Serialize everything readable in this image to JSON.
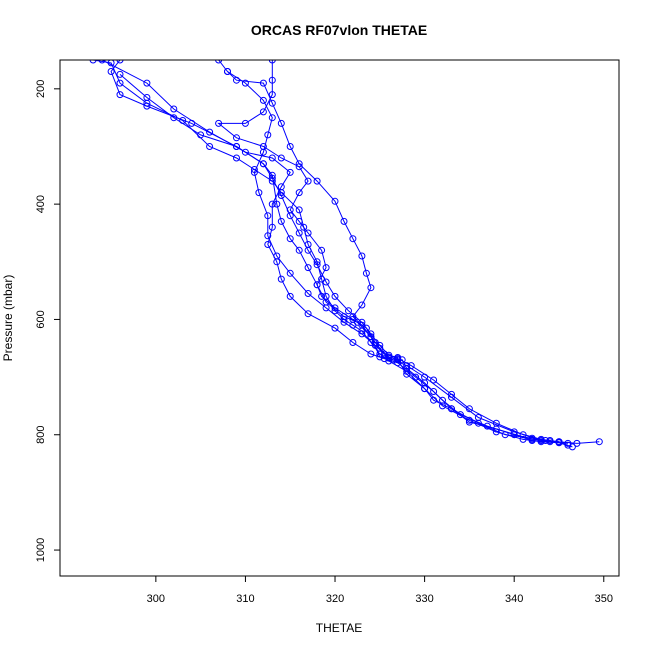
{
  "chart_data": {
    "type": "line",
    "title": "ORCAS RF07vlon THETAE",
    "xlabel": "THETAE",
    "ylabel": "Pressure (mbar)",
    "xlim": [
      289.3,
      351.7
    ],
    "ylim": [
      1045,
      150
    ],
    "y_inverted": true,
    "x_ticks": [
      300,
      310,
      320,
      330,
      340,
      350
    ],
    "y_ticks": [
      200,
      400,
      600,
      800,
      1000
    ],
    "grid": false,
    "legend": "none",
    "marker": "open-circle",
    "color": "#0000ff",
    "series": [
      {
        "points": [
          [
            293,
            150
          ],
          [
            295,
            155
          ],
          [
            296,
            190
          ],
          [
            299,
            225
          ],
          [
            303,
            255
          ],
          [
            306,
            300
          ],
          [
            309,
            320
          ],
          [
            311,
            340
          ],
          [
            313,
            360
          ],
          [
            314,
            380
          ],
          [
            316,
            410
          ],
          [
            316.5,
            440
          ],
          [
            317,
            470
          ],
          [
            318,
            500
          ],
          [
            318.5,
            530
          ],
          [
            319,
            560
          ],
          [
            320,
            585
          ],
          [
            321,
            600
          ],
          [
            322,
            610
          ],
          [
            323,
            620
          ],
          [
            324,
            640
          ],
          [
            325,
            660
          ],
          [
            326,
            672
          ],
          [
            328,
            690
          ],
          [
            330,
            720
          ],
          [
            332,
            750
          ],
          [
            335,
            775
          ],
          [
            338,
            795
          ],
          [
            341,
            808
          ],
          [
            343,
            812
          ],
          [
            345,
            814
          ],
          [
            346.5,
            821
          ]
        ]
      },
      {
        "points": [
          [
            296,
            150
          ],
          [
            295,
            170
          ],
          [
            296,
            210
          ],
          [
            299,
            230
          ],
          [
            304,
            260
          ],
          [
            309,
            300
          ],
          [
            312,
            330
          ],
          [
            313,
            350
          ],
          [
            313.5,
            400
          ],
          [
            314,
            430
          ],
          [
            315,
            460
          ],
          [
            316,
            480
          ],
          [
            317,
            510
          ],
          [
            318,
            540
          ],
          [
            319,
            570
          ],
          [
            321,
            595
          ],
          [
            322.5,
            605
          ],
          [
            324,
            630
          ],
          [
            325,
            665
          ],
          [
            326.5,
            670
          ],
          [
            327.5,
            670
          ],
          [
            328,
            685
          ],
          [
            330,
            710
          ],
          [
            332,
            740
          ],
          [
            334,
            765
          ],
          [
            337,
            785
          ],
          [
            340,
            800
          ],
          [
            342,
            810
          ],
          [
            344,
            812
          ],
          [
            346,
            815
          ]
        ]
      },
      {
        "points": [
          [
            294,
            150
          ],
          [
            299,
            190
          ],
          [
            302,
            235
          ],
          [
            306,
            275
          ],
          [
            310,
            310
          ],
          [
            313,
            320
          ],
          [
            315,
            345
          ],
          [
            314,
            370
          ],
          [
            313,
            400
          ],
          [
            313,
            440
          ],
          [
            312.5,
            470
          ],
          [
            313.5,
            500
          ],
          [
            314,
            530
          ],
          [
            315,
            560
          ],
          [
            317,
            590
          ],
          [
            320,
            615
          ],
          [
            322,
            640
          ],
          [
            324,
            660
          ],
          [
            325.5,
            668
          ],
          [
            327,
            675
          ],
          [
            329,
            700
          ],
          [
            331,
            725
          ],
          [
            333,
            755
          ],
          [
            336,
            780
          ],
          [
            339,
            800
          ],
          [
            342,
            806
          ],
          [
            343.5,
            810
          ],
          [
            345,
            812
          ]
        ]
      },
      {
        "points": [
          [
            307,
            150
          ],
          [
            308,
            170
          ],
          [
            310,
            190
          ],
          [
            312,
            220
          ],
          [
            313,
            250
          ],
          [
            312.5,
            280
          ],
          [
            312,
            310
          ],
          [
            311,
            345
          ],
          [
            311.5,
            380
          ],
          [
            312.5,
            420
          ],
          [
            312.5,
            455
          ],
          [
            313.5,
            490
          ],
          [
            315,
            520
          ],
          [
            317,
            555
          ],
          [
            319,
            580
          ],
          [
            321,
            605
          ],
          [
            323,
            625
          ],
          [
            324.5,
            645
          ],
          [
            326,
            667
          ],
          [
            328,
            680
          ],
          [
            330,
            700
          ],
          [
            333,
            735
          ],
          [
            336,
            770
          ],
          [
            340,
            795
          ],
          [
            343,
            808
          ],
          [
            345,
            812
          ],
          [
            347,
            815
          ],
          [
            349.5,
            812
          ]
        ]
      },
      {
        "points": [
          [
            313,
            150
          ],
          [
            313,
            185
          ],
          [
            313,
            210
          ],
          [
            312,
            240
          ],
          [
            310,
            260
          ],
          [
            307,
            260
          ],
          [
            309,
            285
          ],
          [
            312,
            300
          ],
          [
            314,
            320
          ],
          [
            316,
            335
          ],
          [
            317,
            360
          ],
          [
            316,
            380
          ],
          [
            315,
            410
          ],
          [
            316,
            430
          ],
          [
            317,
            450
          ],
          [
            318.5,
            480
          ],
          [
            319,
            510
          ],
          [
            318,
            540
          ],
          [
            318.5,
            560
          ],
          [
            320,
            580
          ],
          [
            322,
            600
          ],
          [
            323.5,
            615
          ],
          [
            324.5,
            640
          ],
          [
            325.5,
            660
          ],
          [
            327,
            666
          ],
          [
            327,
            670
          ]
        ]
      },
      {
        "points": [
          [
            308,
            170
          ],
          [
            309,
            185
          ],
          [
            312,
            190
          ],
          [
            313,
            225
          ],
          [
            314,
            260
          ],
          [
            315,
            300
          ],
          [
            316,
            330
          ],
          [
            318,
            360
          ],
          [
            320,
            395
          ],
          [
            321,
            430
          ],
          [
            322,
            460
          ],
          [
            323,
            490
          ],
          [
            323.5,
            520
          ],
          [
            324,
            545
          ],
          [
            323,
            575
          ],
          [
            322,
            595
          ],
          [
            323,
            610
          ],
          [
            324,
            630
          ],
          [
            325,
            650
          ],
          [
            326,
            665
          ],
          [
            327,
            670
          ],
          [
            328,
            695
          ],
          [
            330,
            720
          ],
          [
            331,
            740
          ],
          [
            333,
            755
          ],
          [
            335,
            778
          ],
          [
            338,
            790
          ],
          [
            342,
            808
          ],
          [
            344,
            810
          ],
          [
            346,
            818
          ]
        ]
      },
      {
        "points": [
          [
            296,
            175
          ],
          [
            299,
            215
          ],
          [
            302,
            250
          ],
          [
            305,
            280
          ],
          [
            309,
            300
          ],
          [
            312,
            330
          ],
          [
            313,
            355
          ],
          [
            314,
            385
          ],
          [
            315,
            420
          ],
          [
            316,
            450
          ],
          [
            317,
            480
          ],
          [
            318,
            505
          ],
          [
            319,
            535
          ],
          [
            320,
            560
          ],
          [
            321.5,
            585
          ],
          [
            323,
            605
          ],
          [
            324,
            625
          ],
          [
            325,
            645
          ],
          [
            326,
            662
          ],
          [
            327,
            668
          ],
          [
            328.5,
            680
          ],
          [
            331,
            705
          ],
          [
            333,
            730
          ],
          [
            335,
            755
          ],
          [
            338,
            780
          ],
          [
            341,
            800
          ],
          [
            343,
            810
          ],
          [
            345,
            813
          ]
        ]
      }
    ]
  }
}
